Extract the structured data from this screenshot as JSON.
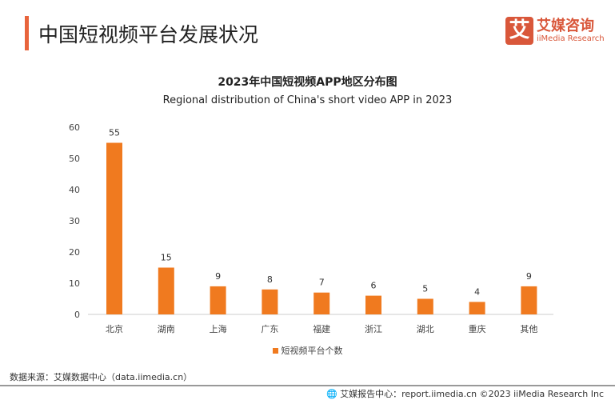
{
  "header": {
    "title": "中国短视频平台发展状况",
    "logo_cn": "艾媒咨询",
    "logo_en": "iiMedia Research",
    "logo_mark": "艾"
  },
  "chart_data": {
    "type": "bar",
    "title": "2023年中国短视频APP地区分布图",
    "subtitle": "Regional distribution of China's short video APP in 2023",
    "categories": [
      "北京",
      "湖南",
      "上海",
      "广东",
      "福建",
      "浙江",
      "湖北",
      "重庆",
      "其他"
    ],
    "series": [
      {
        "name": "短视频平台个数",
        "values": [
          55,
          15,
          9,
          8,
          7,
          6,
          5,
          4,
          9
        ],
        "color": "#f07a1f"
      }
    ],
    "ylim": [
      0,
      60
    ],
    "yticks": [
      0,
      10,
      20,
      30,
      40,
      50,
      60
    ],
    "grid": false,
    "legend": "bottom"
  },
  "footer": {
    "source": "数据来源：艾媒数据中心（data.iimedia.cn）",
    "credit": "艾媒报告中心：report.iimedia.cn  ©2023  iiMedia Research Inc"
  }
}
